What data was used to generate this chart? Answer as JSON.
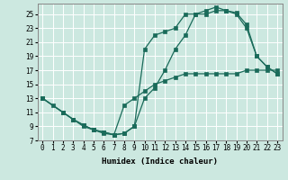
{
  "xlabel": "Humidex (Indice chaleur)",
  "bg_color": "#cce8e0",
  "grid_color": "#ffffff",
  "line_color": "#1a6b5a",
  "xlim": [
    -0.5,
    23.5
  ],
  "ylim": [
    7,
    26.5
  ],
  "xticks": [
    0,
    1,
    2,
    3,
    4,
    5,
    6,
    7,
    8,
    9,
    10,
    11,
    12,
    13,
    14,
    15,
    16,
    17,
    18,
    19,
    20,
    21,
    22,
    23
  ],
  "yticks": [
    7,
    9,
    11,
    13,
    15,
    17,
    19,
    21,
    23,
    25
  ],
  "line1_x": [
    0,
    1,
    2,
    3,
    4,
    5,
    6,
    7,
    8,
    9,
    10,
    11,
    12,
    13,
    14,
    15,
    16,
    17,
    18,
    19,
    20,
    21,
    22,
    23
  ],
  "line1_y": [
    13,
    12,
    11,
    10,
    9,
    8.5,
    8,
    7.8,
    12,
    13,
    14,
    15,
    15.5,
    16,
    16.5,
    16.5,
    16.5,
    16.5,
    16.5,
    16.5,
    17,
    17,
    17,
    17
  ],
  "line2_x": [
    0,
    2,
    3,
    4,
    5,
    6,
    7,
    8,
    9,
    10,
    11,
    12,
    13,
    14,
    15,
    16,
    17,
    18,
    19,
    20,
    21,
    22,
    23
  ],
  "line2_y": [
    13,
    11,
    10,
    9.2,
    8.5,
    8.2,
    7.8,
    8,
    9,
    20,
    22,
    22.5,
    23,
    25,
    25,
    25.5,
    26,
    25.5,
    25.2,
    23.5,
    19,
    17.5,
    16.5
  ],
  "line3_x": [
    0,
    2,
    3,
    4,
    5,
    6,
    7,
    8,
    9,
    10,
    11,
    12,
    13,
    14,
    15,
    16,
    17,
    18,
    19,
    20,
    21,
    22,
    23
  ],
  "line3_y": [
    13,
    11,
    10,
    9.2,
    8.5,
    8.2,
    7.8,
    8,
    9,
    13,
    14.5,
    17,
    20,
    22,
    25,
    25,
    25.5,
    25.5,
    25,
    23,
    19,
    17.5,
    16.5
  ]
}
